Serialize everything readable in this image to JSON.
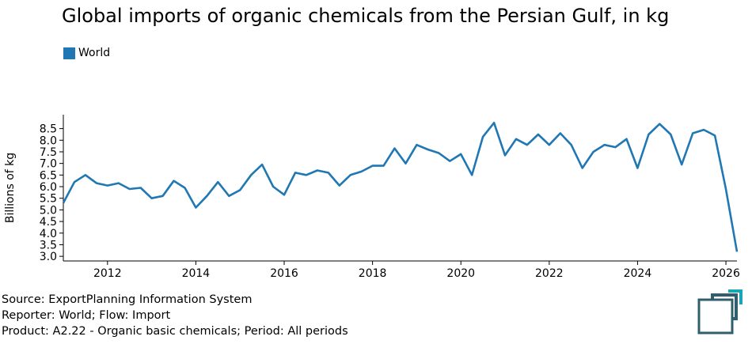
{
  "title": "Global imports of organic chemicals from the Persian Gulf, in kg",
  "legend": {
    "label": "World",
    "color": "#1f77b4"
  },
  "footer": {
    "line1": "Source: ExportPlanning Information System",
    "line2": "Reporter: World; Flow: Import",
    "line3": "Product: A2.22 - Organic basic chemicals; Period: All periods"
  },
  "colors": {
    "series": "#1f77b4",
    "logo_dark": "#2f5f6e",
    "logo_accent": "#19a7b5"
  },
  "chart_data": {
    "type": "line",
    "title": "Global imports of organic chemicals from the Persian Gulf, in kg",
    "xlabel": "",
    "ylabel": "Billions of kg",
    "xlim": [
      2011.0,
      2026.25
    ],
    "ylim": [
      2.8,
      9.1
    ],
    "x_ticks": [
      2012,
      2014,
      2016,
      2018,
      2020,
      2022,
      2024,
      2026
    ],
    "y_ticks": [
      3.0,
      3.5,
      4.0,
      4.5,
      5.0,
      5.5,
      6.0,
      6.5,
      7.0,
      7.5,
      8.0,
      8.5
    ],
    "grid": false,
    "legend_position": "top-left",
    "series": [
      {
        "name": "World",
        "x": [
          2011.0,
          2011.25,
          2011.5,
          2011.75,
          2012.0,
          2012.25,
          2012.5,
          2012.75,
          2013.0,
          2013.25,
          2013.5,
          2013.75,
          2014.0,
          2014.25,
          2014.5,
          2014.75,
          2015.0,
          2015.25,
          2015.5,
          2015.75,
          2016.0,
          2016.25,
          2016.5,
          2016.75,
          2017.0,
          2017.25,
          2017.5,
          2017.75,
          2018.0,
          2018.25,
          2018.5,
          2018.75,
          2019.0,
          2019.25,
          2019.5,
          2019.75,
          2020.0,
          2020.25,
          2020.5,
          2020.75,
          2021.0,
          2021.25,
          2021.5,
          2021.75,
          2022.0,
          2022.25,
          2022.5,
          2022.75,
          2023.0,
          2023.25,
          2023.5,
          2023.75,
          2024.0,
          2024.25,
          2024.5,
          2024.75,
          2025.0,
          2025.25,
          2025.5,
          2025.75,
          2026.0,
          2026.25
        ],
        "y": [
          5.3,
          6.2,
          6.5,
          6.15,
          6.05,
          6.15,
          5.9,
          5.95,
          5.5,
          5.6,
          6.25,
          5.95,
          5.1,
          5.6,
          6.2,
          5.6,
          5.85,
          6.5,
          6.95,
          6.0,
          5.65,
          6.6,
          6.5,
          6.7,
          6.6,
          6.05,
          6.5,
          6.65,
          6.9,
          6.9,
          7.65,
          7.0,
          7.8,
          7.6,
          7.45,
          7.1,
          7.4,
          6.5,
          8.15,
          8.75,
          7.35,
          8.05,
          7.8,
          8.25,
          7.8,
          8.3,
          7.8,
          6.8,
          7.5,
          7.8,
          7.7,
          8.05,
          6.8,
          8.25,
          8.7,
          8.25,
          6.95,
          8.3,
          8.45,
          8.2,
          5.9,
          3.2
        ]
      }
    ]
  }
}
